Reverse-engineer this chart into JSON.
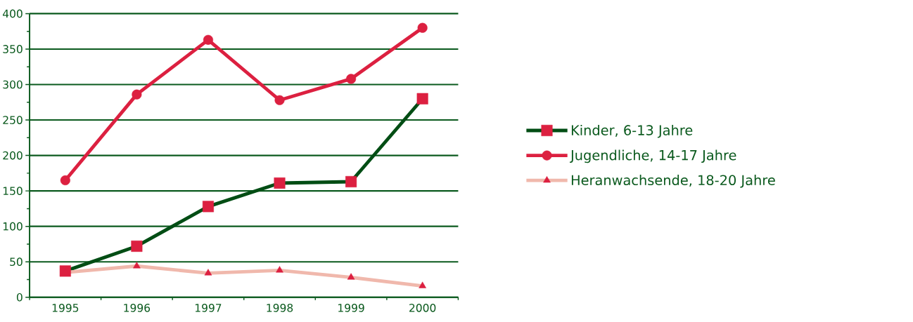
{
  "chart_data": {
    "type": "line",
    "categories": [
      "1995",
      "1996",
      "1997",
      "1998",
      "1999",
      "2000"
    ],
    "series": [
      {
        "name": "Kinder, 6-13 Jahre",
        "color": "#004d14",
        "marker": "square",
        "values": [
          37,
          72,
          128,
          161,
          163,
          280
        ]
      },
      {
        "name": "Jugendliche, 14-17 Jahre",
        "color": "#dc2040",
        "marker": "circle",
        "values": [
          165,
          286,
          363,
          278,
          308,
          380
        ]
      },
      {
        "name": "Heranwachsende, 18-20 Jahre",
        "color": "#f0b8ac",
        "marker": "triangle",
        "values": [
          35,
          44,
          34,
          38,
          28,
          16
        ]
      }
    ],
    "ylim": [
      0,
      400
    ],
    "yticks": [
      0,
      50,
      100,
      150,
      200,
      250,
      300,
      350,
      400
    ],
    "grid": "y",
    "legend": "right"
  }
}
